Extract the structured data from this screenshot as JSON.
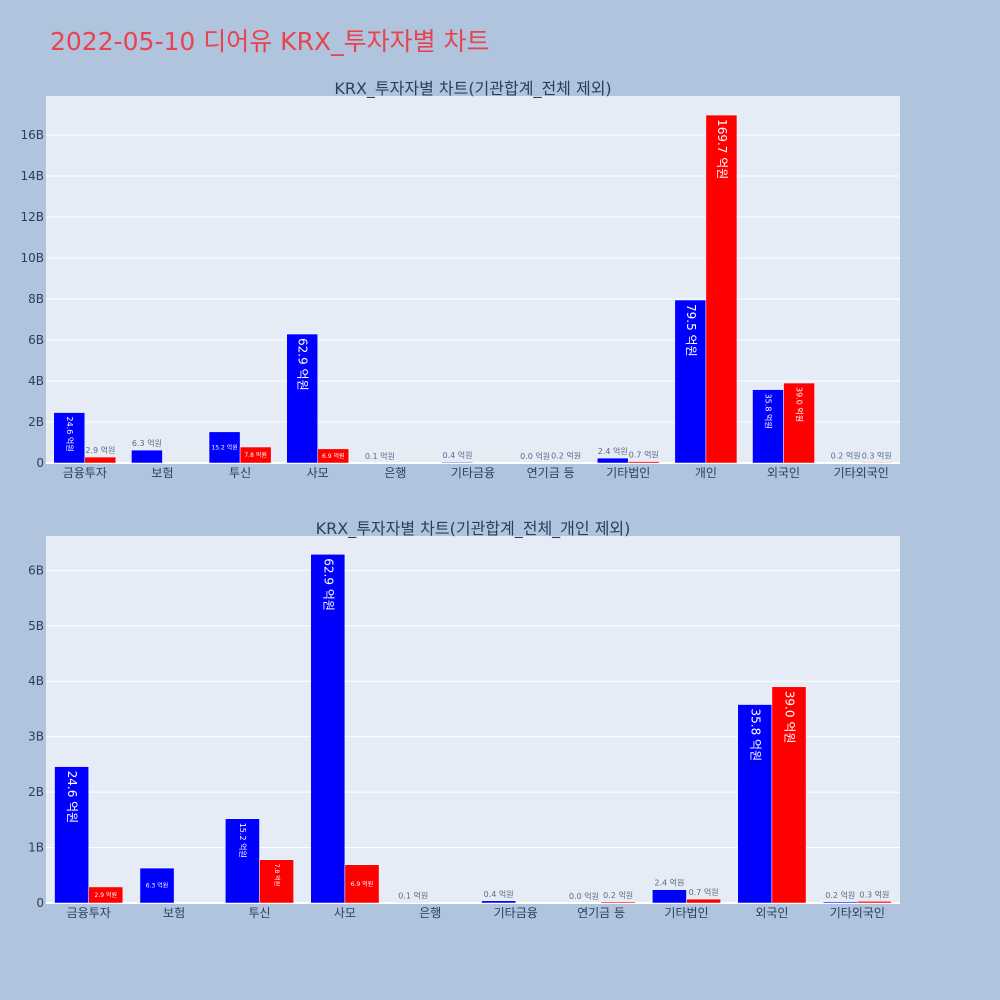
{
  "page": {
    "title": "2022-05-10 디어유 KRX_투자자별 차트"
  },
  "colors": {
    "buy": "#0000ff",
    "sell": "#ff0000",
    "plot_bg": "#e5ecf6",
    "paper_bg": "#b0c4de"
  },
  "chart_data": [
    {
      "type": "bar",
      "title": "KRX_투자자별 차트(기관합계_전체 제외)",
      "categories": [
        "금융투자",
        "보험",
        "투신",
        "사모",
        "은행",
        "기타금융",
        "연기금 등",
        "기타법인",
        "개인",
        "외국인",
        "기타외국인"
      ],
      "series": [
        {
          "color": "#0000ff",
          "values": [
            2.46,
            0.63,
            1.52,
            6.29,
            0.01,
            0.04,
            0.0,
            0.24,
            7.95,
            3.58,
            0.02
          ],
          "labels": [
            "24.6 억원",
            "6.3 억원",
            "15.2 억원",
            "62.9 억원",
            "0.1 억원",
            "0.4 억원",
            "0.0 억원",
            "2.4 억원",
            "79.5 억원",
            "35.8 억원",
            "0.2 억원"
          ]
        },
        {
          "color": "#ff0000",
          "values": [
            0.29,
            0.0,
            0.78,
            0.69,
            0.0,
            0.0,
            0.02,
            0.07,
            16.97,
            3.9,
            0.03
          ],
          "labels": [
            "2.9 억원",
            "",
            "7.8 억원",
            "6.9 억원",
            "",
            "",
            "0.2 억원",
            "0.7 억원",
            "169.7 억원",
            "39.0 억원",
            "0.3 억원"
          ]
        }
      ],
      "y_ticks": [
        0,
        2,
        4,
        6,
        8,
        10,
        12,
        14,
        16
      ],
      "y_tick_labels": [
        "0",
        "2B",
        "4B",
        "6B",
        "8B",
        "10B",
        "12B",
        "14B",
        "16B"
      ],
      "ylim": [
        0,
        17.9
      ],
      "grid": true
    },
    {
      "type": "bar",
      "title": "KRX_투자자별 차트(기관합계_전체_개인 제외)",
      "categories": [
        "금융투자",
        "보험",
        "투신",
        "사모",
        "은행",
        "기타금융",
        "연기금 등",
        "기타법인",
        "외국인",
        "기타외국인"
      ],
      "series": [
        {
          "color": "#0000ff",
          "values": [
            2.46,
            0.63,
            1.52,
            6.29,
            0.01,
            0.04,
            0.0,
            0.24,
            3.58,
            0.02
          ],
          "labels": [
            "24.6 억원",
            "6.3 억원",
            "15.2 억원",
            "62.9 억원",
            "0.1 억원",
            "0.4 억원",
            "0.0 억원",
            "2.4 억원",
            "35.8 억원",
            "0.2 억원"
          ]
        },
        {
          "color": "#ff0000",
          "values": [
            0.29,
            0.0,
            0.78,
            0.69,
            0.0,
            0.0,
            0.02,
            0.07,
            3.9,
            0.03
          ],
          "labels": [
            "2.9 억원",
            "",
            "7.8 억원",
            "6.9 억원",
            "",
            "",
            "0.2 억원",
            "0.7 억원",
            "39.0 억원",
            "0.3 억원"
          ]
        }
      ],
      "y_ticks": [
        0,
        1,
        2,
        3,
        4,
        5,
        6
      ],
      "y_tick_labels": [
        "0",
        "1B",
        "2B",
        "3B",
        "4B",
        "5B",
        "6B"
      ],
      "ylim": [
        0,
        6.62
      ],
      "grid": true
    }
  ]
}
